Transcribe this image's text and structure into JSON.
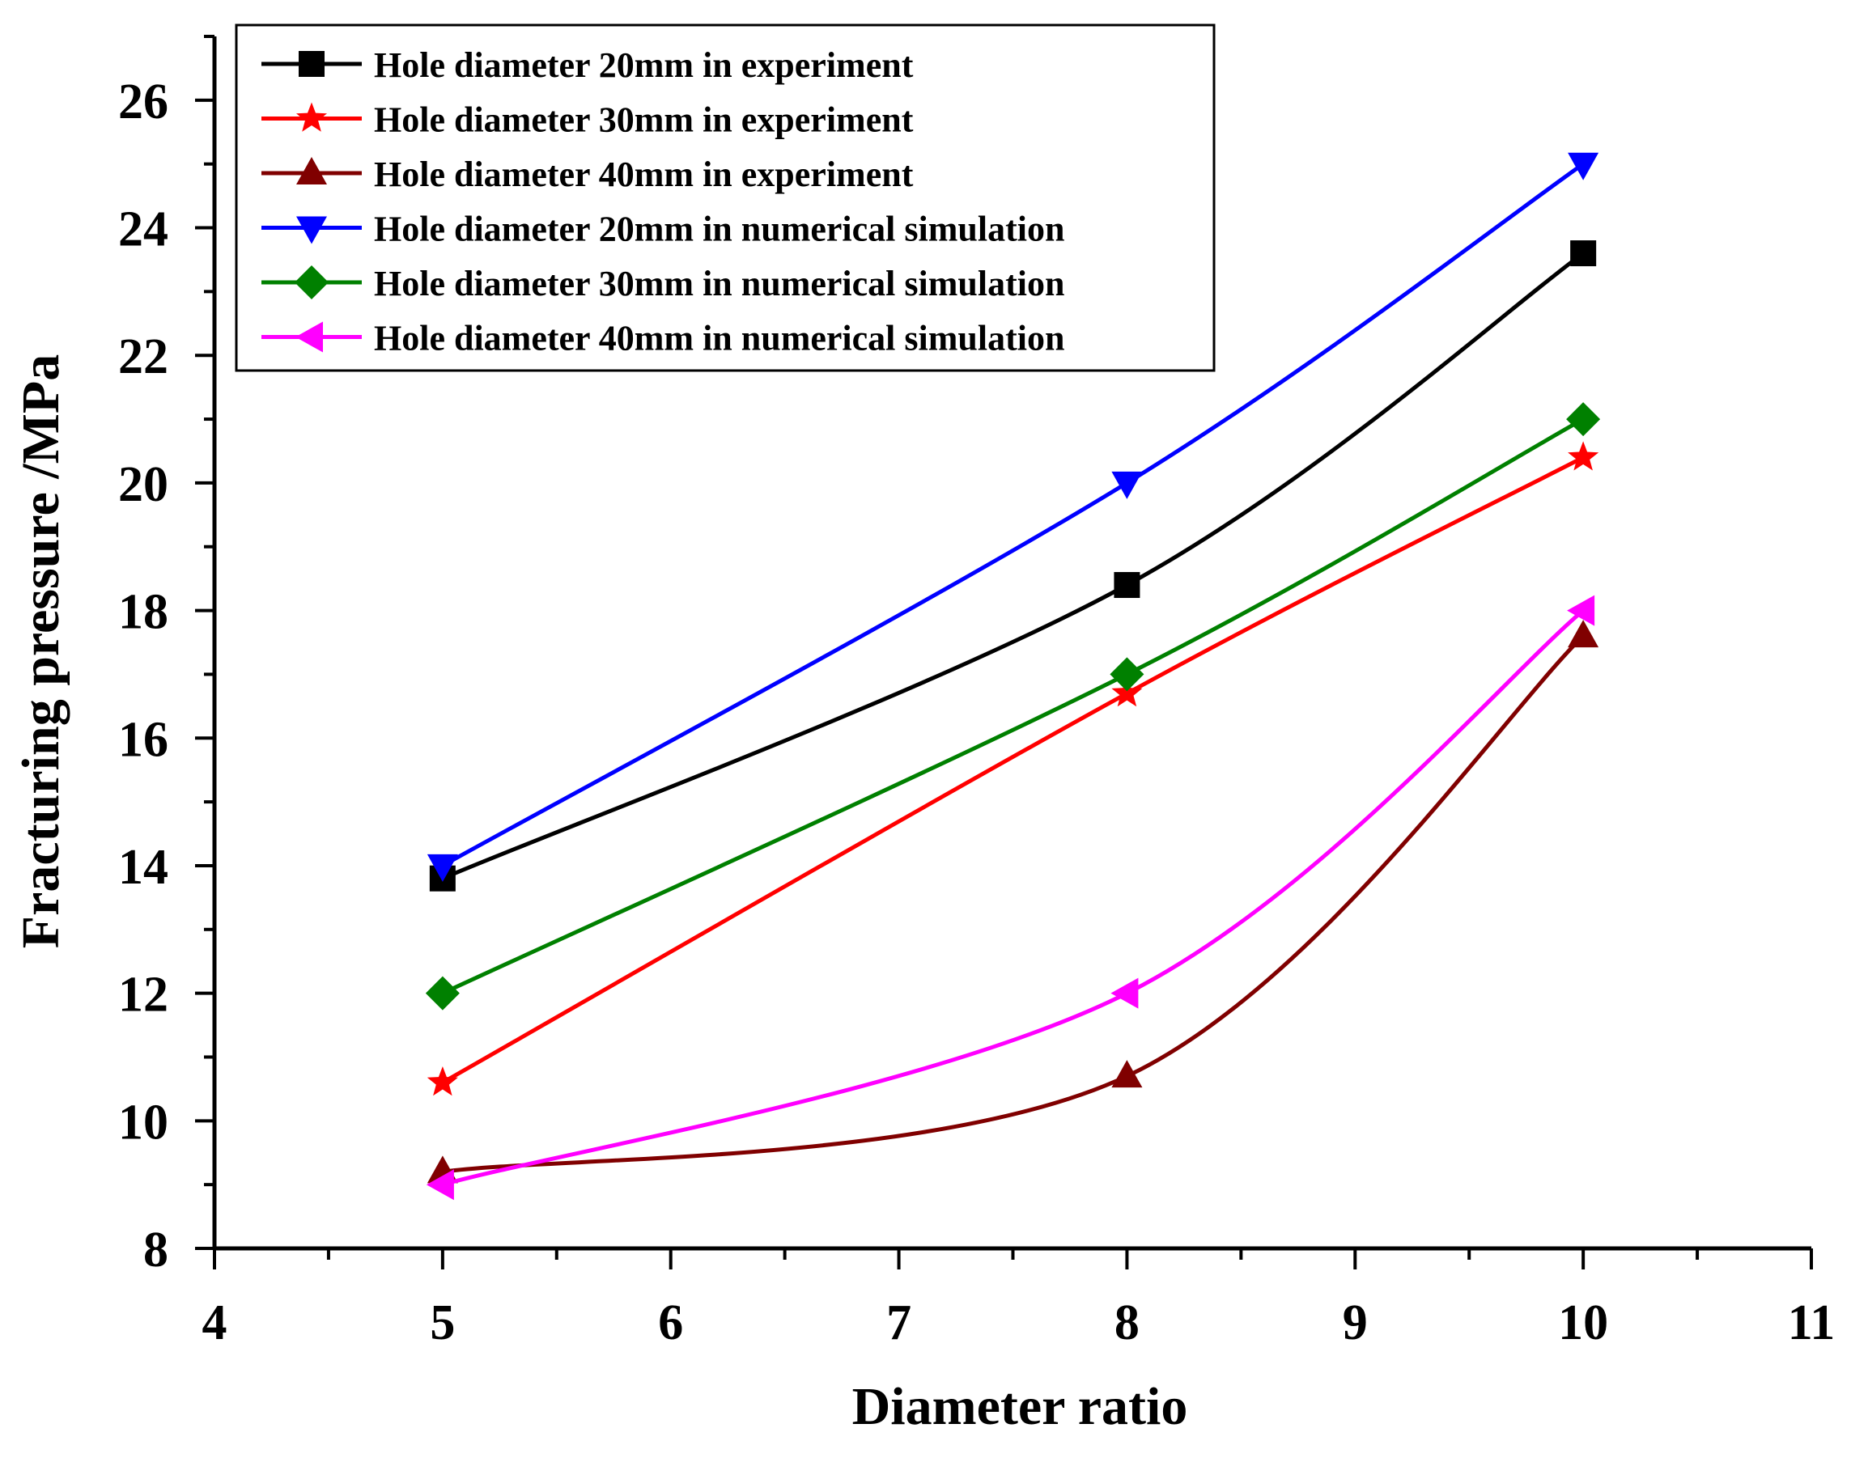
{
  "chart_data": {
    "type": "line",
    "title": "",
    "xlabel": "Diameter ratio",
    "ylabel": "Fracturing pressure /MPa",
    "xlim": [
      4,
      11
    ],
    "ylim": [
      8,
      27
    ],
    "xticks": [
      4,
      5,
      6,
      7,
      8,
      9,
      10,
      11
    ],
    "yticks": [
      8,
      10,
      12,
      14,
      16,
      18,
      20,
      22,
      24,
      26
    ],
    "x_tick_labels": [
      "4",
      "5",
      "6",
      "7",
      "8",
      "9",
      "10",
      "11"
    ],
    "y_tick_labels": [
      "8",
      "10",
      "12",
      "14",
      "16",
      "18",
      "20",
      "22",
      "24",
      "26"
    ],
    "x": [
      5,
      8,
      10
    ],
    "legend_position": "top-left",
    "series": [
      {
        "name": "Hole diameter 20mm in experiment",
        "values": [
          13.8,
          18.4,
          23.6
        ],
        "color": "#000000",
        "marker": "square"
      },
      {
        "name": "Hole diameter 30mm in experiment",
        "values": [
          10.6,
          16.7,
          20.4
        ],
        "color": "#ff0000",
        "marker": "star"
      },
      {
        "name": "Hole diameter 40mm in experiment",
        "values": [
          9.2,
          10.7,
          17.6
        ],
        "color": "#800000",
        "marker": "triangle-up"
      },
      {
        "name": "Hole diameter 20mm in numerical simulation",
        "values": [
          14.0,
          20.0,
          25.0
        ],
        "color": "#0000ff",
        "marker": "triangle-down"
      },
      {
        "name": "Hole diameter 30mm in numerical simulation",
        "values": [
          12.0,
          17.0,
          21.0
        ],
        "color": "#008000",
        "marker": "diamond"
      },
      {
        "name": "Hole diameter 40mm in numerical simulation",
        "values": [
          9.0,
          12.0,
          18.0
        ],
        "color": "#ff00ff",
        "marker": "triangle-left"
      }
    ]
  }
}
